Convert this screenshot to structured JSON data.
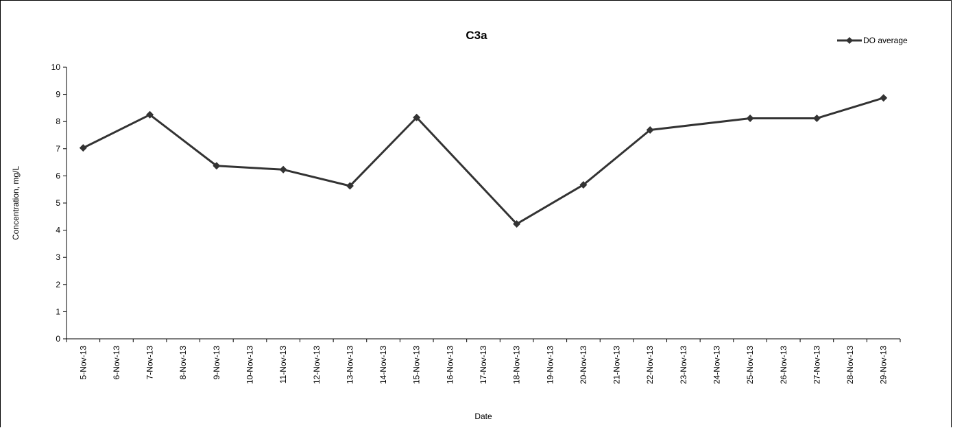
{
  "chart_data": {
    "type": "line",
    "title": "C3a",
    "xlabel": "Date",
    "ylabel": "Concentration, mg/L",
    "ylim": [
      0,
      10
    ],
    "y_ticks": [
      "0",
      "1",
      "2",
      "3",
      "4",
      "5",
      "6",
      "7",
      "8",
      "9",
      "10"
    ],
    "categories": [
      "5-Nov-13",
      "6-Nov-13",
      "7-Nov-13",
      "8-Nov-13",
      "9-Nov-13",
      "10-Nov-13",
      "11-Nov-13",
      "12-Nov-13",
      "13-Nov-13",
      "14-Nov-13",
      "15-Nov-13",
      "16-Nov-13",
      "17-Nov-13",
      "18-Nov-13",
      "19-Nov-13",
      "20-Nov-13",
      "21-Nov-13",
      "22-Nov-13",
      "23-Nov-13",
      "24-Nov-13",
      "25-Nov-13",
      "26-Nov-13",
      "27-Nov-13",
      "28-Nov-13",
      "29-Nov-13"
    ],
    "series": [
      {
        "name": "DO average",
        "color": "#333333",
        "marker": "diamond",
        "points": [
          {
            "x": "5-Nov-13",
            "y": 7.03
          },
          {
            "x": "7-Nov-13",
            "y": 8.25
          },
          {
            "x": "9-Nov-13",
            "y": 6.37
          },
          {
            "x": "11-Nov-13",
            "y": 6.23
          },
          {
            "x": "13-Nov-13",
            "y": 5.63
          },
          {
            "x": "15-Nov-13",
            "y": 8.15
          },
          {
            "x": "18-Nov-13",
            "y": 4.23
          },
          {
            "x": "20-Nov-13",
            "y": 5.67
          },
          {
            "x": "22-Nov-13",
            "y": 7.69
          },
          {
            "x": "25-Nov-13",
            "y": 8.12
          },
          {
            "x": "27-Nov-13",
            "y": 8.12
          },
          {
            "x": "29-Nov-13",
            "y": 8.87
          }
        ]
      }
    ],
    "grid": false,
    "legend": "top-right"
  }
}
